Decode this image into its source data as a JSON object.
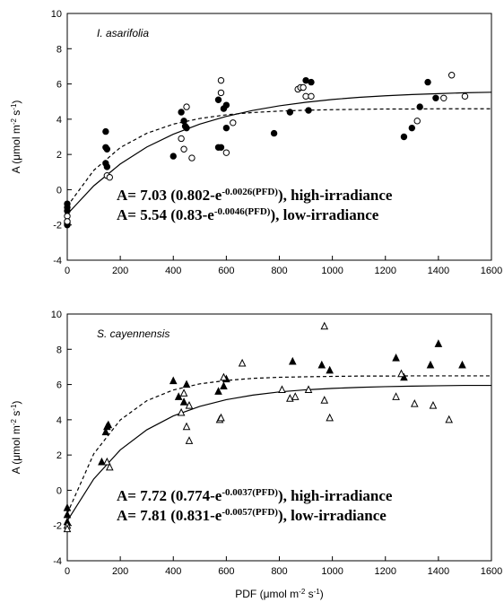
{
  "chart_data": [
    {
      "type": "scatter",
      "title": "I. asarifolia",
      "ylabel": [
        "A (μmol m",
        "-2",
        " s",
        "-1",
        ")"
      ],
      "equations": [
        [
          "A= 7.03 (0.802-e",
          "-0.0026(PFD)",
          "), high-irradiance"
        ],
        [
          "A= 5.54 (0.83-e",
          "-0.0046(PFD)",
          "), low-irradiance"
        ]
      ],
      "xlim": [
        0,
        1600
      ],
      "xticks": [
        0,
        200,
        400,
        600,
        800,
        1000,
        1200,
        1400,
        1600
      ],
      "ylim": [
        -4,
        10
      ],
      "yticks": [
        -4,
        -2,
        0,
        2,
        4,
        6,
        8,
        10
      ],
      "series": [
        {
          "marker": "filled-circle",
          "color": "#000000",
          "x": [
            0,
            0,
            0,
            0,
            0,
            145,
            145,
            150,
            145,
            150,
            400,
            430,
            440,
            445,
            450,
            570,
            570,
            580,
            590,
            600,
            600,
            780,
            840,
            900,
            910,
            920,
            1270,
            1300,
            1330,
            1360,
            1390
          ],
          "values": [
            -0.8,
            -1.0,
            -1.2,
            -1.9,
            -2.0,
            3.3,
            2.4,
            2.3,
            1.5,
            1.3,
            1.9,
            4.4,
            3.9,
            3.6,
            3.5,
            5.1,
            2.4,
            2.4,
            4.6,
            4.8,
            3.5,
            3.2,
            4.4,
            6.2,
            4.5,
            6.1,
            3.0,
            3.5,
            4.7,
            6.1,
            5.2
          ]
        },
        {
          "marker": "open-circle",
          "color": "#000000",
          "x": [
            0,
            0,
            150,
            160,
            430,
            440,
            450,
            470,
            580,
            580,
            600,
            625,
            870,
            880,
            890,
            900,
            920,
            1320,
            1420,
            1450,
            1500
          ],
          "values": [
            -1.5,
            -1.8,
            0.8,
            0.7,
            2.9,
            2.3,
            4.7,
            1.8,
            6.2,
            5.5,
            2.1,
            3.8,
            5.7,
            5.8,
            5.8,
            5.3,
            5.3,
            3.9,
            5.2,
            6.5,
            5.3
          ]
        }
      ],
      "curves": [
        {
          "style": "solid",
          "color": "#000000",
          "x": [
            0,
            100,
            200,
            300,
            400,
            500,
            600,
            700,
            800,
            900,
            1000,
            1100,
            1200,
            1300,
            1400,
            1500,
            1600
          ],
          "values": [
            -1.39,
            0.22,
            1.46,
            2.42,
            3.15,
            3.72,
            4.16,
            4.5,
            4.76,
            4.96,
            5.12,
            5.24,
            5.33,
            5.4,
            5.45,
            5.5,
            5.53
          ]
        },
        {
          "style": "dashed",
          "color": "#000000",
          "x": [
            0,
            100,
            200,
            300,
            400,
            500,
            600,
            700,
            800,
            900,
            1000,
            1100,
            1200,
            1300,
            1400,
            1500,
            1600
          ],
          "values": [
            -0.94,
            1.1,
            2.39,
            3.2,
            3.72,
            4.04,
            4.25,
            4.38,
            4.46,
            4.51,
            4.54,
            4.56,
            4.58,
            4.58,
            4.59,
            4.59,
            4.59
          ]
        }
      ]
    },
    {
      "type": "scatter",
      "title": "S. cayennensis",
      "ylabel": [
        "A (μmol m",
        "-2",
        " s",
        "-1",
        ")"
      ],
      "xlabel": [
        "PDF (μmol m",
        "-2",
        " s",
        "-1",
        ")"
      ],
      "equations": [
        [
          "A= 7.72 (0.774-e",
          "-0.0037(PFD)",
          "), high-irradiance"
        ],
        [
          "A= 7.81 (0.831-e",
          "-0.0057(PFD)",
          "), low-irradiance"
        ]
      ],
      "xlim": [
        0,
        1600
      ],
      "xticks": [
        0,
        200,
        400,
        600,
        800,
        1000,
        1200,
        1400,
        1600
      ],
      "ylim": [
        -4,
        10
      ],
      "yticks": [
        -4,
        -2,
        0,
        2,
        4,
        6,
        8,
        10
      ],
      "series": [
        {
          "marker": "filled-triangle",
          "color": "#000000",
          "x": [
            0,
            0,
            0,
            145,
            150,
            155,
            130,
            400,
            420,
            440,
            450,
            570,
            590,
            600,
            850,
            960,
            990,
            1240,
            1270,
            1370,
            1400,
            1490
          ],
          "values": [
            -1.0,
            -1.4,
            -1.8,
            3.3,
            3.6,
            3.7,
            1.6,
            6.2,
            5.3,
            5.0,
            6.0,
            5.6,
            5.9,
            6.3,
            7.3,
            7.1,
            6.8,
            7.5,
            6.4,
            7.1,
            8.3,
            7.1
          ]
        },
        {
          "marker": "open-triangle",
          "color": "#000000",
          "x": [
            0,
            0,
            150,
            160,
            430,
            440,
            450,
            460,
            460,
            575,
            580,
            590,
            660,
            810,
            840,
            860,
            910,
            970,
            970,
            990,
            1240,
            1260,
            1310,
            1380,
            1440
          ],
          "values": [
            -2.0,
            -2.2,
            1.6,
            1.3,
            4.4,
            5.5,
            3.6,
            2.8,
            4.8,
            4.0,
            4.1,
            6.4,
            7.2,
            5.7,
            5.2,
            5.3,
            5.7,
            9.3,
            5.1,
            4.1,
            5.3,
            6.6,
            4.9,
            4.8,
            4.0
          ]
        }
      ],
      "curves": [
        {
          "style": "solid",
          "color": "#000000",
          "x": [
            0,
            100,
            200,
            300,
            400,
            500,
            600,
            700,
            800,
            900,
            1000,
            1100,
            1200,
            1300,
            1400,
            1500,
            1600
          ],
          "values": [
            -1.74,
            0.64,
            2.29,
            3.43,
            4.22,
            4.76,
            5.14,
            5.4,
            5.58,
            5.7,
            5.78,
            5.84,
            5.88,
            5.91,
            5.93,
            5.95,
            5.95
          ]
        },
        {
          "style": "dashed",
          "color": "#000000",
          "x": [
            0,
            100,
            200,
            300,
            400,
            500,
            600,
            700,
            800,
            900,
            1000,
            1100,
            1200,
            1300,
            1400,
            1500,
            1600
          ],
          "values": [
            -1.32,
            2.07,
            3.99,
            5.08,
            5.69,
            6.04,
            6.23,
            6.35,
            6.41,
            6.44,
            6.46,
            6.48,
            6.48,
            6.49,
            6.49,
            6.49,
            6.49
          ]
        }
      ]
    }
  ]
}
